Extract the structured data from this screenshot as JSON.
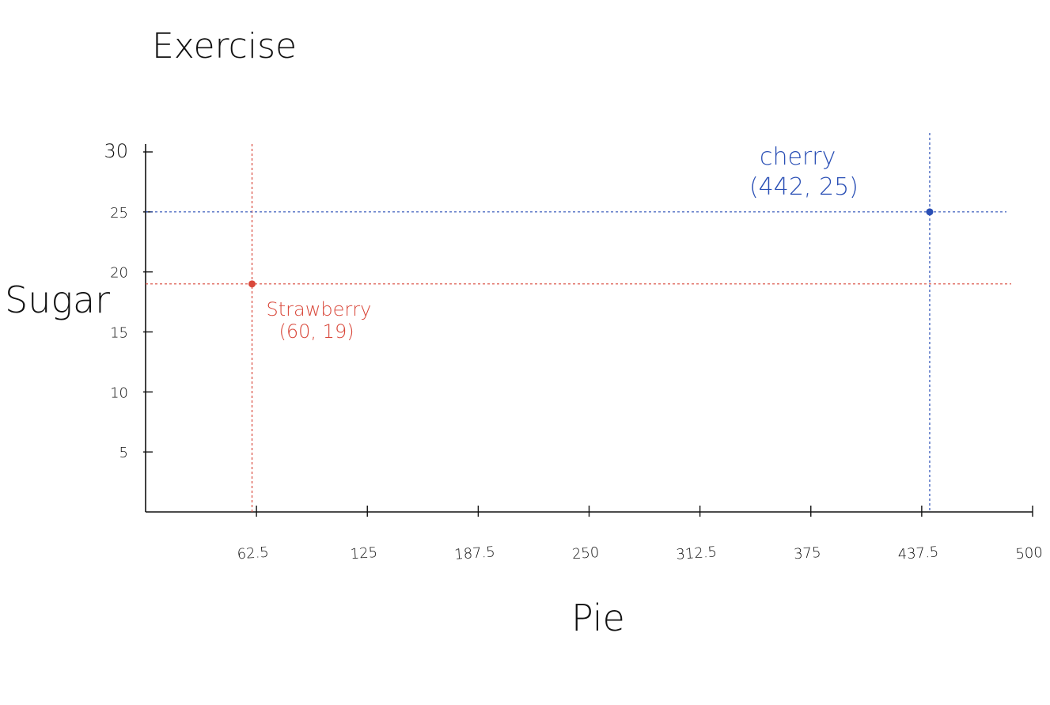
{
  "chart_data": {
    "type": "scatter",
    "title": "Exercise",
    "xlabel": "Pie",
    "ylabel": "Sugar",
    "xlim": [
      0,
      500
    ],
    "ylim": [
      0,
      30
    ],
    "x_ticks": [
      62.5,
      125,
      187.5,
      250,
      312.5,
      375,
      437.5,
      500
    ],
    "x_tick_labels": [
      "62.5",
      "125",
      "187.5",
      "250",
      "312.5",
      "375",
      "437.5",
      "500"
    ],
    "y_ticks": [
      5,
      10,
      15,
      20,
      25,
      30
    ],
    "y_tick_labels": [
      "5",
      "10",
      "15",
      "20",
      "25",
      "30"
    ],
    "grid": false,
    "points": [
      {
        "name": "Strawberry",
        "coord_label": "(60, 19)",
        "x": 60,
        "y": 19,
        "color": "#d9483b"
      },
      {
        "name": "cherry",
        "coord_label": "(442, 25)",
        "x": 442,
        "y": 25,
        "color": "#2a4fb5"
      }
    ]
  }
}
